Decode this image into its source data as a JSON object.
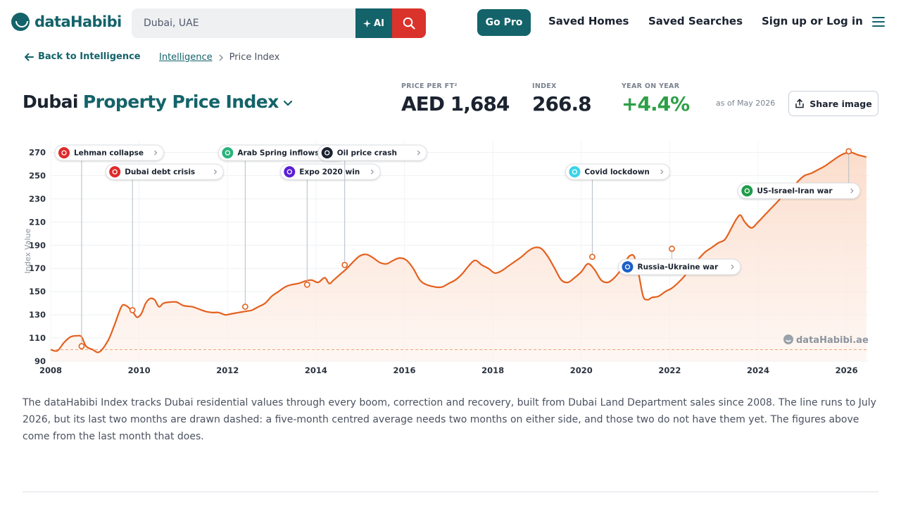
{
  "header": {
    "logo_text": "dataHabibi",
    "search_value": "Dubai, UAE",
    "ai_label": "AI",
    "go_pro_label": "Go Pro",
    "nav": [
      "Saved Homes",
      "Saved Searches",
      "Sign up or Log in"
    ]
  },
  "subheader": {
    "back_label": "Back to Intelligence",
    "breadcrumb_link": "Intelligence",
    "breadcrumb_current": "Price Index"
  },
  "title": {
    "city": "Dubai",
    "index_name": "Property Price Index"
  },
  "stats": [
    {
      "label": "PRICE PER FT²",
      "value": "AED 1,684"
    },
    {
      "label": "INDEX",
      "value": "266.8"
    },
    {
      "label": "YEAR ON YEAR",
      "value": "+4.4%"
    }
  ],
  "as_of": "as of May 2026",
  "share_label": "Share image",
  "colors": {
    "brand": "#14636a",
    "line": "#e4611f",
    "area": "#fbe3d6",
    "positive": "#2e9f48",
    "search": "#d9332b"
  },
  "chart_data": {
    "type": "line",
    "ylabel": "Index Value",
    "xlabel": "",
    "x_ticks": [
      "2008",
      "2010",
      "2012",
      "2014",
      "2016",
      "2018",
      "2020",
      "2022",
      "2024",
      "2026"
    ],
    "y_ticks": [
      90,
      110,
      130,
      150,
      170,
      190,
      210,
      230,
      250,
      270
    ],
    "xlim": [
      2008.0,
      2026.5
    ],
    "ylim": [
      90,
      280
    ],
    "baseline": 100,
    "grid": true,
    "watermark": "dataHabibi.ae",
    "series": [
      {
        "points": [
          [
            2008.0,
            100
          ],
          [
            2008.15,
            99
          ],
          [
            2008.3,
            106
          ],
          [
            2008.45,
            111
          ],
          [
            2008.6,
            112
          ],
          [
            2008.7,
            111
          ],
          [
            2008.8,
            103
          ],
          [
            2008.95,
            100
          ],
          [
            2009.1,
            98
          ],
          [
            2009.3,
            108
          ],
          [
            2009.45,
            122
          ],
          [
            2009.6,
            137
          ],
          [
            2009.7,
            138
          ],
          [
            2009.85,
            133
          ],
          [
            2009.95,
            128
          ],
          [
            2010.05,
            131
          ],
          [
            2010.15,
            140
          ],
          [
            2010.25,
            144
          ],
          [
            2010.35,
            143
          ],
          [
            2010.45,
            137
          ],
          [
            2010.55,
            140
          ],
          [
            2010.7,
            141
          ],
          [
            2010.85,
            141
          ],
          [
            2011.0,
            138
          ],
          [
            2011.2,
            137
          ],
          [
            2011.35,
            135
          ],
          [
            2011.5,
            133
          ],
          [
            2011.65,
            132
          ],
          [
            2011.8,
            132
          ],
          [
            2011.95,
            130
          ],
          [
            2012.1,
            131
          ],
          [
            2012.25,
            132
          ],
          [
            2012.4,
            133
          ],
          [
            2012.55,
            134
          ],
          [
            2012.7,
            137
          ],
          [
            2012.85,
            140
          ],
          [
            2013.0,
            146
          ],
          [
            2013.15,
            150
          ],
          [
            2013.3,
            154
          ],
          [
            2013.45,
            156
          ],
          [
            2013.6,
            157
          ],
          [
            2013.75,
            159
          ],
          [
            2013.9,
            160
          ],
          [
            2014.05,
            158
          ],
          [
            2014.2,
            162
          ],
          [
            2014.3,
            157
          ],
          [
            2014.4,
            160
          ],
          [
            2014.55,
            165
          ],
          [
            2014.7,
            170
          ],
          [
            2014.85,
            176
          ],
          [
            2015.0,
            181
          ],
          [
            2015.15,
            182
          ],
          [
            2015.3,
            179
          ],
          [
            2015.45,
            175
          ],
          [
            2015.6,
            174
          ],
          [
            2015.75,
            177
          ],
          [
            2015.9,
            179
          ],
          [
            2016.05,
            177
          ],
          [
            2016.2,
            170
          ],
          [
            2016.35,
            160
          ],
          [
            2016.5,
            156
          ],
          [
            2016.7,
            154
          ],
          [
            2016.85,
            154
          ],
          [
            2017.0,
            157
          ],
          [
            2017.15,
            160
          ],
          [
            2017.3,
            165
          ],
          [
            2017.45,
            172
          ],
          [
            2017.6,
            177
          ],
          [
            2017.75,
            173
          ],
          [
            2017.9,
            170
          ],
          [
            2018.05,
            166
          ],
          [
            2018.2,
            168
          ],
          [
            2018.35,
            172
          ],
          [
            2018.5,
            176
          ],
          [
            2018.65,
            180
          ],
          [
            2018.8,
            185
          ],
          [
            2018.95,
            188
          ],
          [
            2019.1,
            187
          ],
          [
            2019.25,
            180
          ],
          [
            2019.4,
            170
          ],
          [
            2019.55,
            160
          ],
          [
            2019.7,
            158
          ],
          [
            2019.85,
            162
          ],
          [
            2020.0,
            167
          ],
          [
            2020.15,
            174
          ],
          [
            2020.3,
            169
          ],
          [
            2020.45,
            160
          ],
          [
            2020.6,
            158
          ],
          [
            2020.75,
            162
          ],
          [
            2020.9,
            169
          ],
          [
            2021.0,
            176
          ],
          [
            2021.1,
            181
          ],
          [
            2021.2,
            180
          ],
          [
            2021.3,
            165
          ],
          [
            2021.4,
            146
          ],
          [
            2021.5,
            143
          ],
          [
            2021.6,
            145
          ],
          [
            2021.75,
            146
          ],
          [
            2021.9,
            150
          ],
          [
            2022.05,
            153
          ],
          [
            2022.2,
            158
          ],
          [
            2022.35,
            164
          ],
          [
            2022.5,
            172
          ],
          [
            2022.65,
            178
          ],
          [
            2022.8,
            184
          ],
          [
            2022.95,
            188
          ],
          [
            2023.1,
            192
          ],
          [
            2023.25,
            195
          ],
          [
            2023.4,
            205
          ],
          [
            2023.5,
            212
          ],
          [
            2023.6,
            216
          ],
          [
            2023.7,
            210
          ],
          [
            2023.85,
            205
          ],
          [
            2024.0,
            210
          ],
          [
            2024.15,
            216
          ],
          [
            2024.3,
            222
          ],
          [
            2024.45,
            228
          ],
          [
            2024.6,
            234
          ],
          [
            2024.75,
            238
          ],
          [
            2024.9,
            245
          ],
          [
            2025.05,
            250
          ],
          [
            2025.2,
            252
          ],
          [
            2025.35,
            255
          ],
          [
            2025.5,
            258
          ],
          [
            2025.65,
            262
          ],
          [
            2025.8,
            266
          ],
          [
            2025.95,
            269
          ],
          [
            2026.1,
            270
          ],
          [
            2026.25,
            268
          ],
          [
            2026.35,
            267
          ],
          [
            2026.45,
            266
          ]
        ]
      }
    ],
    "events": [
      {
        "label": "Lehman collapse",
        "x": 2008.7,
        "y": 103,
        "row": 1,
        "color": "#e02a2a",
        "icon": "chart-down-icon"
      },
      {
        "label": "Dubai debt crisis",
        "x": 2009.85,
        "y": 134,
        "row": 2,
        "color": "#e02a2a",
        "icon": "building-icon"
      },
      {
        "label": "Arab Spring inflows",
        "x": 2012.4,
        "y": 137,
        "row": 1,
        "color": "#29b37b",
        "icon": "money-icon"
      },
      {
        "label": "Expo 2020 win",
        "x": 2013.8,
        "y": 156,
        "row": 2,
        "color": "#5b1fd6",
        "icon": "trophy-icon"
      },
      {
        "label": "Oil price crash",
        "x": 2014.65,
        "y": 173,
        "row": 1,
        "color": "#1b2330",
        "icon": "oil-barrel-icon"
      },
      {
        "label": "Covid lockdown",
        "x": 2020.25,
        "y": 180,
        "row": 2,
        "color": "#38d4e8",
        "icon": "virus-icon"
      },
      {
        "label": "Russia-Ukraine war",
        "x": 2022.05,
        "y": 187,
        "row": 7,
        "color": "#1c5fc7",
        "icon": "flag-ukraine-icon"
      },
      {
        "label": "US-Israel-Iran war",
        "x": 2026.05,
        "y": 271,
        "row": 3,
        "color": "#1f9c4a",
        "icon": "flag-iran-icon"
      }
    ]
  },
  "description": "The dataHabibi Index tracks Dubai residential values through every boom, correction and recovery, built from Dubai Land Department sales since 2008. The line runs to July 2026, but its last two months are drawn dashed: a five-month centred average needs two months on either side, and those two do not have them yet. The figures above come from the last month that does."
}
